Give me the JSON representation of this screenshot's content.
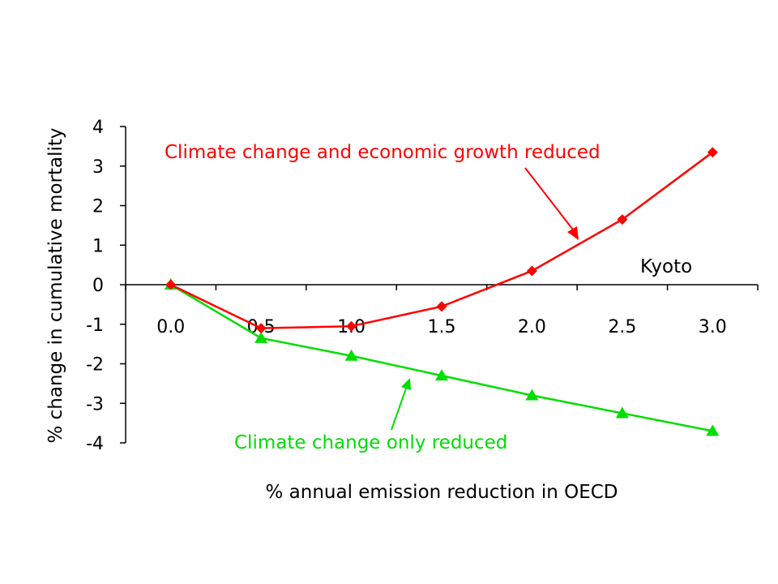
{
  "chart_data": {
    "type": "line",
    "title": "",
    "xlabel": "% annual emission reduction in OECD",
    "ylabel": "% change in cumulative mortality",
    "x_ticks": [
      "0.0",
      "0.5",
      "1.0",
      "1.5",
      "2.0",
      "2.5",
      "3.0"
    ],
    "y_ticks": [
      "4",
      "3",
      "2",
      "1",
      "0",
      "-1",
      "-2",
      "-3",
      "-4"
    ],
    "ylim": [
      -4,
      4
    ],
    "xlim": [
      -0.25,
      3.25
    ],
    "grid": false,
    "series": [
      {
        "name": "Climate change and economic growth reduced",
        "color": "#ff0000",
        "marker": "diamond",
        "x": [
          0.0,
          0.5,
          1.0,
          1.5,
          2.0,
          2.5,
          3.0
        ],
        "values": [
          0.0,
          -1.1,
          -1.05,
          -0.55,
          0.35,
          1.65,
          3.35
        ]
      },
      {
        "name": "Climate change only reduced",
        "color": "#00dd00",
        "marker": "triangle",
        "x": [
          0.0,
          0.5,
          1.0,
          1.5,
          2.0,
          2.5,
          3.0
        ],
        "values": [
          0.0,
          -1.35,
          -1.8,
          -2.3,
          -2.8,
          -3.25,
          -3.7
        ]
      }
    ],
    "annotations": {
      "red_label": "Climate change and economic growth reduced",
      "green_label": "Climate change only reduced",
      "kyoto_label": "Kyoto"
    }
  }
}
